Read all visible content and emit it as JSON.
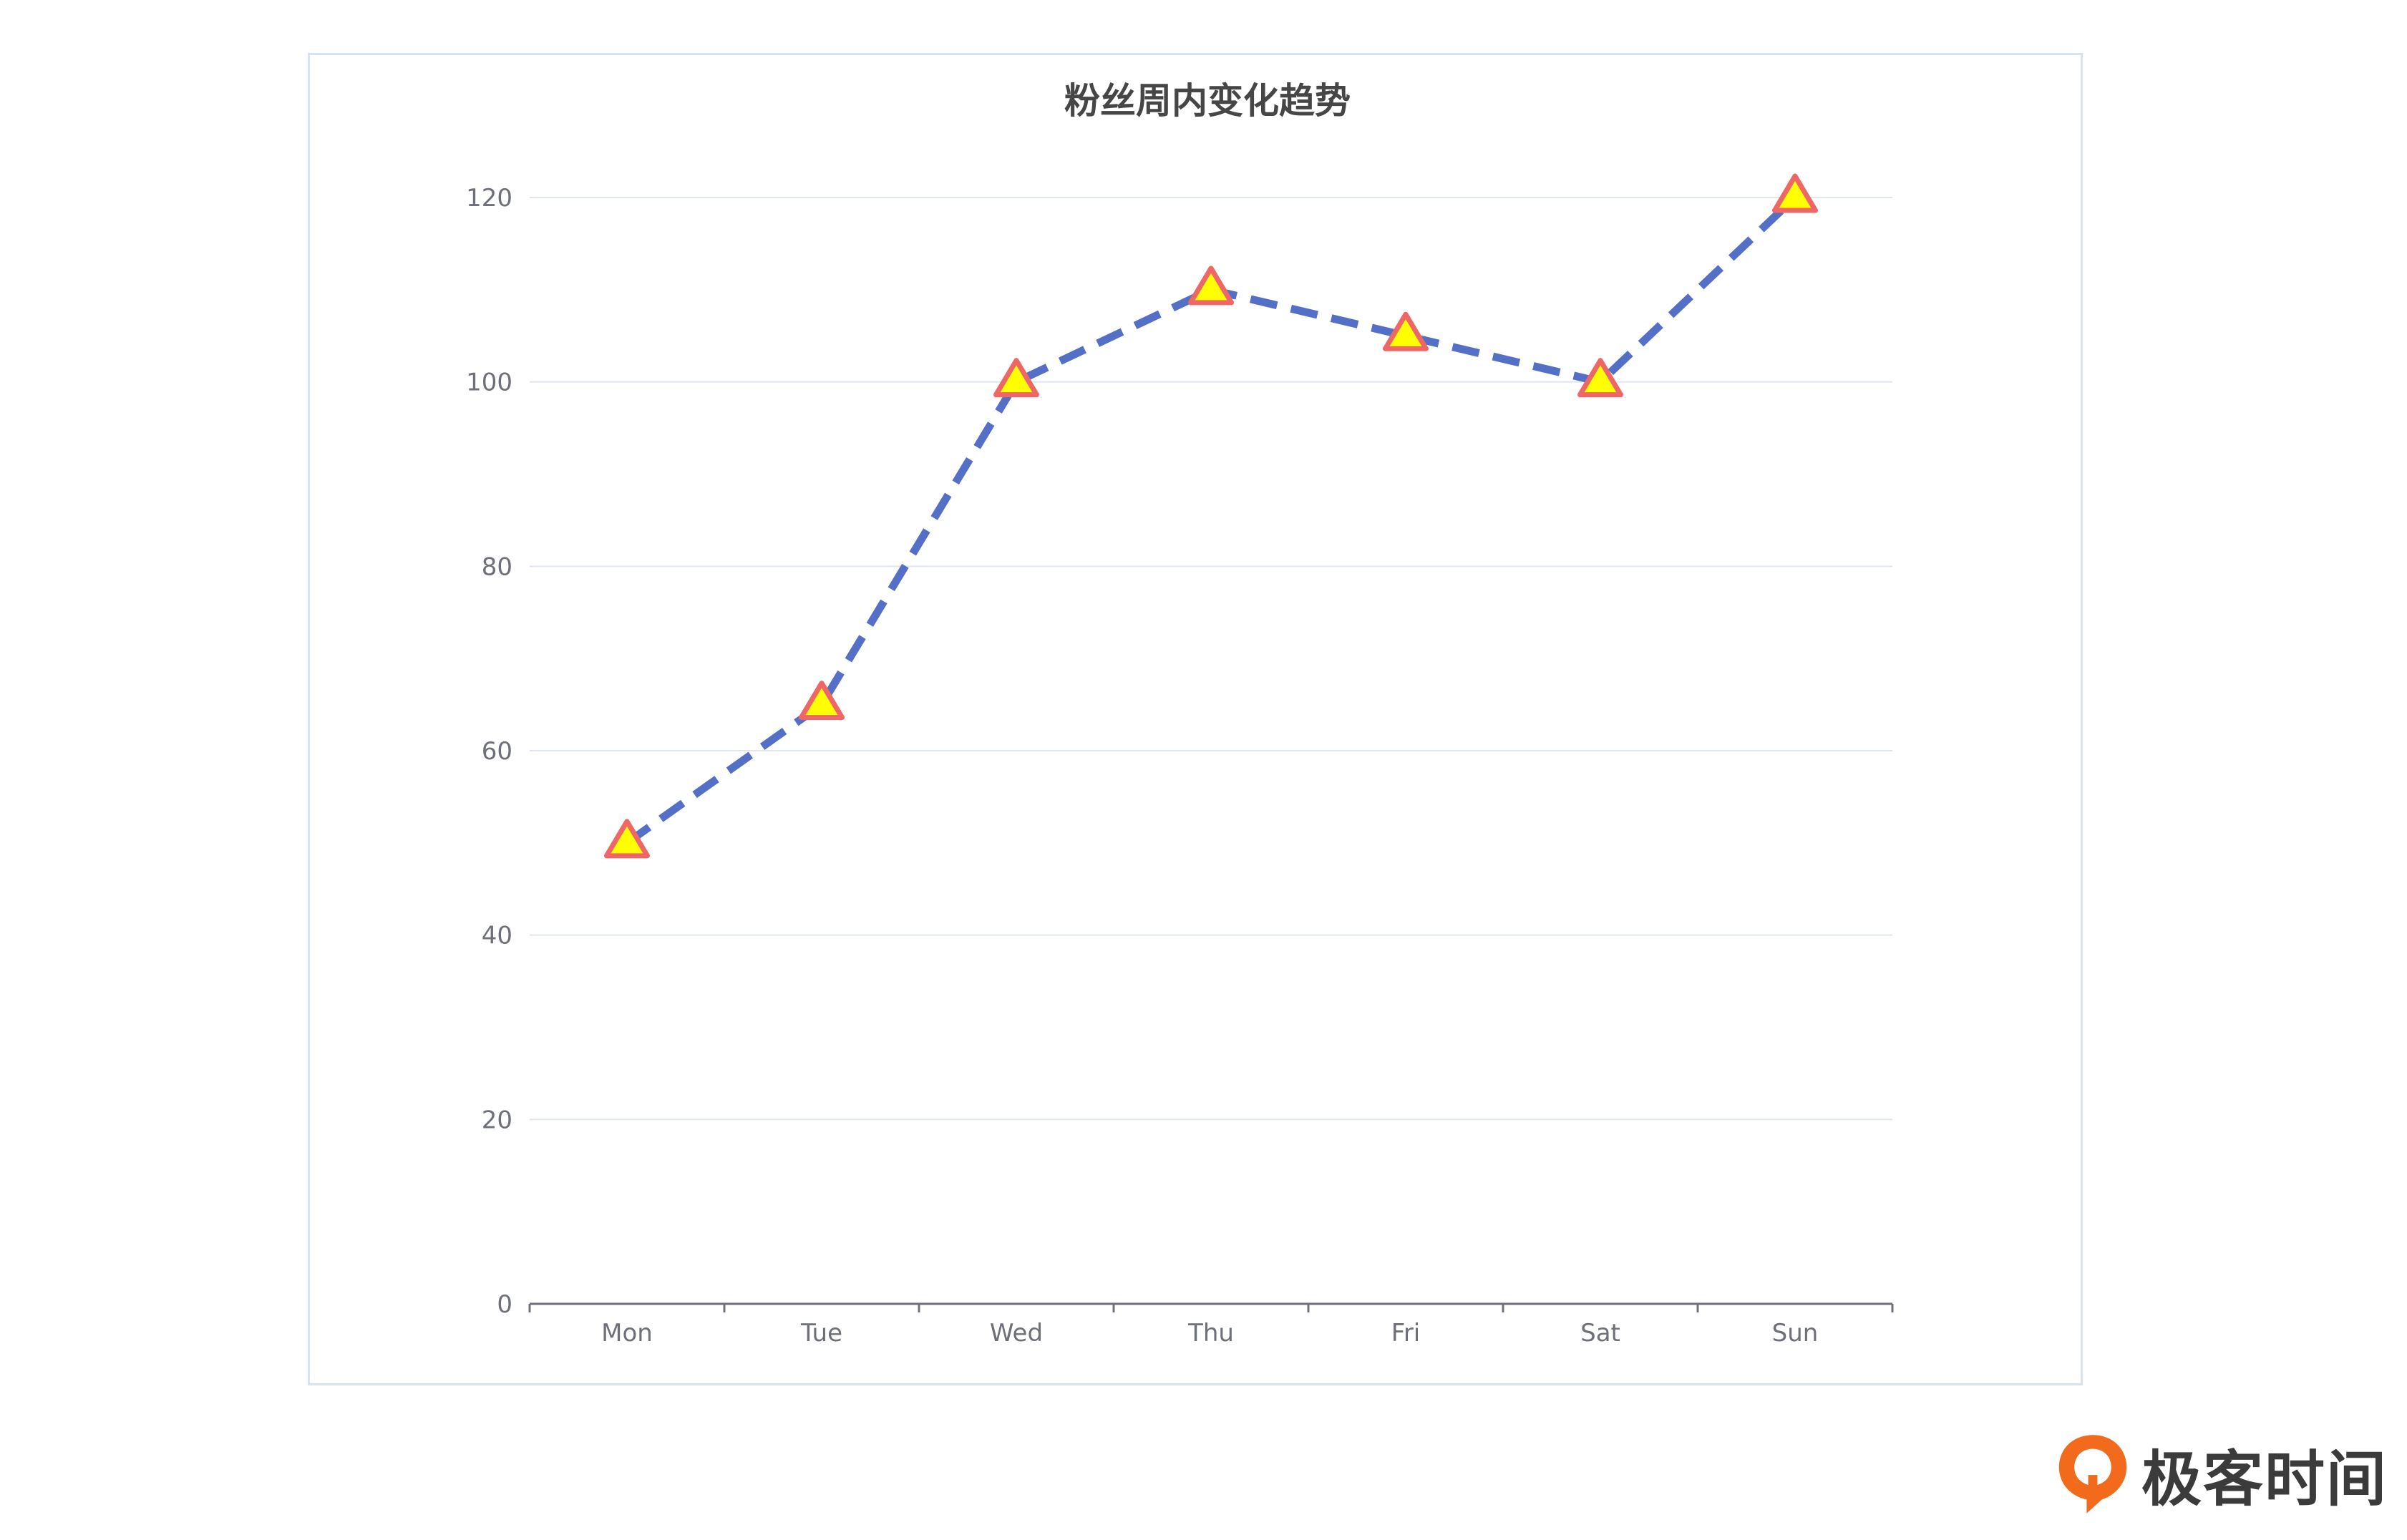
{
  "chart_data": {
    "type": "line",
    "title": "粉丝周内变化趋势",
    "categories": [
      "Mon",
      "Tue",
      "Wed",
      "Thu",
      "Fri",
      "Sat",
      "Sun"
    ],
    "series": [
      {
        "values": [
          50,
          65,
          100,
          110,
          105,
          100,
          120
        ]
      }
    ],
    "ylim": [
      0,
      120
    ],
    "yticks": [
      0,
      20,
      40,
      60,
      80,
      100,
      120
    ],
    "grid": true,
    "line_style": "dashed",
    "marker": "triangle",
    "colors": {
      "line": "#5470c6",
      "marker_fill": "#ffff00",
      "marker_stroke": "#ee6666",
      "grid": "#e0e6f1",
      "axis": "#6e7079"
    }
  },
  "brand": {
    "name": "极客时间",
    "logo_icon": "geektime-logo-icon",
    "logo_color": "#f26b1d"
  }
}
